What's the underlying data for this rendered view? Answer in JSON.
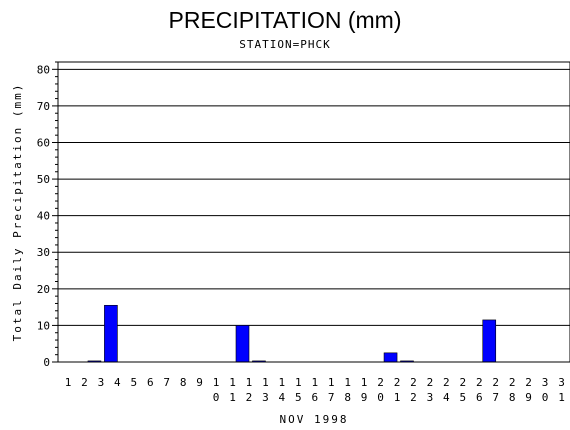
{
  "chart_data": {
    "type": "bar",
    "title": "PRECIPITATION (mm)",
    "subtitle": "STATION=PHCK",
    "xlabel": "NOV 1998",
    "ylabel": "Total Daily Precipitation (mm)",
    "ylim": [
      0,
      82
    ],
    "yticks": [
      0,
      10,
      20,
      30,
      40,
      50,
      60,
      70,
      80
    ],
    "grid": true,
    "bar_color": "#0000ff",
    "categories": [
      "1",
      "2",
      "3",
      "4",
      "5",
      "6",
      "7",
      "8",
      "9",
      "10",
      "11",
      "12",
      "13",
      "14",
      "15",
      "16",
      "17",
      "18",
      "19",
      "20",
      "21",
      "22",
      "23",
      "24",
      "25",
      "26",
      "27",
      "28",
      "29",
      "30",
      "31"
    ],
    "values": [
      0,
      0.3,
      15.5,
      0,
      0,
      0,
      0,
      0,
      0,
      0,
      10,
      0.3,
      0,
      0,
      0,
      0,
      0,
      0,
      0,
      2.5,
      0.3,
      0,
      0,
      0,
      0,
      11.5,
      0,
      0,
      0,
      0,
      0
    ]
  }
}
